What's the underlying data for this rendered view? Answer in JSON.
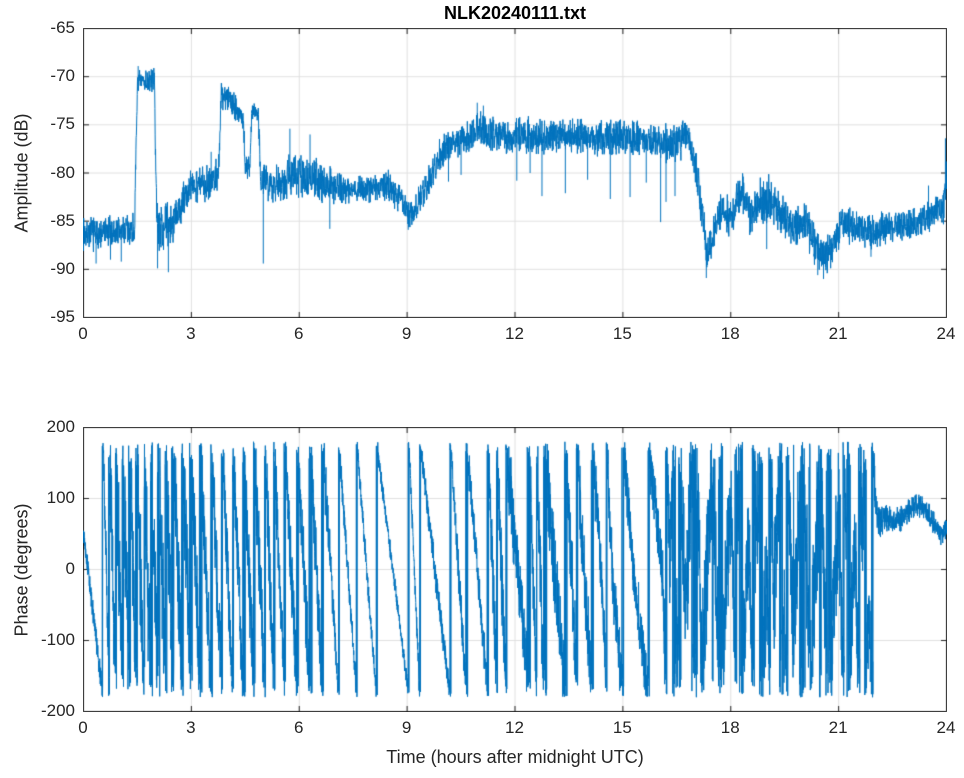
{
  "figure": {
    "title": "NLK20240111.txt",
    "background": "#ffffff"
  },
  "chart_data": [
    {
      "type": "line",
      "title": "NLK20240111.txt",
      "ylabel": "Amplitude (dB)",
      "xlabel": "",
      "xlim": [
        0,
        24
      ],
      "ylim": [
        -95,
        -65
      ],
      "xticks": [
        0,
        3,
        6,
        9,
        12,
        15,
        18,
        21,
        24
      ],
      "yticks": [
        -95,
        -90,
        -85,
        -80,
        -75,
        -70,
        -65
      ],
      "grid": true,
      "legend": "none",
      "line_color": "#0072BD",
      "grid_color": "#e0e0e0",
      "axis_color": "#222222",
      "series": {
        "name": "NLK amplitude",
        "encoding": "anchors are [hour, mean dB, half-spread dB]; spikes are [hour, dB]",
        "envelope": [
          [
            0.0,
            -86.2,
            1.6
          ],
          [
            0.5,
            -86.3,
            1.6
          ],
          [
            1.0,
            -86.0,
            1.7
          ],
          [
            1.42,
            -85.8,
            1.6
          ],
          [
            1.5,
            -70.6,
            1.1
          ],
          [
            1.75,
            -70.4,
            1.2
          ],
          [
            1.97,
            -70.4,
            1.1
          ],
          [
            2.04,
            -85.3,
            2.2
          ],
          [
            2.3,
            -85.6,
            2.3
          ],
          [
            2.6,
            -84.8,
            2.1
          ],
          [
            2.8,
            -82.6,
            1.8
          ],
          [
            3.05,
            -81.2,
            1.6
          ],
          [
            3.35,
            -81.1,
            1.8
          ],
          [
            3.6,
            -80.7,
            1.8
          ],
          [
            3.76,
            -79.8,
            1.5
          ],
          [
            3.83,
            -71.9,
            1.3
          ],
          [
            4.05,
            -72.1,
            1.5
          ],
          [
            4.25,
            -73.2,
            1.5
          ],
          [
            4.44,
            -74.7,
            1.3
          ],
          [
            4.5,
            -79.2,
            1.5
          ],
          [
            4.63,
            -79.6,
            1.5
          ],
          [
            4.68,
            -73.4,
            0.9
          ],
          [
            4.86,
            -73.6,
            0.9
          ],
          [
            4.93,
            -80.6,
            1.6
          ],
          [
            5.2,
            -81.2,
            1.6
          ],
          [
            5.5,
            -80.8,
            2.1
          ],
          [
            5.8,
            -80.2,
            2.2
          ],
          [
            6.1,
            -80.5,
            2.1
          ],
          [
            6.4,
            -80.6,
            2.0
          ],
          [
            6.7,
            -81.0,
            1.8
          ],
          [
            7.0,
            -81.3,
            1.6
          ],
          [
            7.5,
            -81.7,
            1.4
          ],
          [
            8.0,
            -81.6,
            1.4
          ],
          [
            8.5,
            -81.4,
            1.5
          ],
          [
            8.85,
            -82.6,
            1.4
          ],
          [
            9.0,
            -84.4,
            1.2
          ],
          [
            9.2,
            -83.9,
            1.3
          ],
          [
            9.55,
            -81.3,
            1.6
          ],
          [
            9.9,
            -78.2,
            1.6
          ],
          [
            10.3,
            -76.9,
            1.6
          ],
          [
            10.7,
            -76.3,
            1.6
          ],
          [
            11.0,
            -75.4,
            1.6
          ],
          [
            11.35,
            -75.9,
            1.6
          ],
          [
            11.7,
            -76.2,
            1.6
          ],
          [
            12.1,
            -76.0,
            1.7
          ],
          [
            12.5,
            -76.3,
            1.7
          ],
          [
            13.0,
            -76.2,
            1.7
          ],
          [
            13.5,
            -76.0,
            1.6
          ],
          [
            14.0,
            -76.2,
            1.6
          ],
          [
            14.5,
            -76.3,
            1.7
          ],
          [
            15.0,
            -76.2,
            1.7
          ],
          [
            15.5,
            -76.5,
            1.6
          ],
          [
            16.0,
            -76.8,
            1.8
          ],
          [
            16.3,
            -77.1,
            2.0
          ],
          [
            16.6,
            -76.6,
            1.9
          ],
          [
            16.78,
            -75.9,
            1.6
          ],
          [
            16.95,
            -77.8,
            1.6
          ],
          [
            17.15,
            -82.5,
            2.0
          ],
          [
            17.35,
            -88.3,
            1.7
          ],
          [
            17.6,
            -85.2,
            2.0
          ],
          [
            17.82,
            -83.2,
            1.9
          ],
          [
            18.02,
            -85.4,
            1.9
          ],
          [
            18.22,
            -82.0,
            1.9
          ],
          [
            18.4,
            -82.3,
            2.1
          ],
          [
            18.55,
            -84.8,
            2.1
          ],
          [
            18.8,
            -83.2,
            2.3
          ],
          [
            19.05,
            -82.6,
            2.3
          ],
          [
            19.3,
            -83.6,
            2.2
          ],
          [
            19.6,
            -85.4,
            1.9
          ],
          [
            19.85,
            -85.7,
            1.9
          ],
          [
            20.05,
            -84.9,
            1.9
          ],
          [
            20.3,
            -87.2,
            1.9
          ],
          [
            20.55,
            -88.7,
            1.7
          ],
          [
            20.75,
            -88.3,
            1.8
          ],
          [
            20.95,
            -86.6,
            1.8
          ],
          [
            21.15,
            -85.1,
            1.8
          ],
          [
            21.5,
            -85.8,
            1.7
          ],
          [
            21.9,
            -86.0,
            1.8
          ],
          [
            22.3,
            -85.6,
            1.6
          ],
          [
            22.7,
            -85.5,
            1.5
          ],
          [
            23.1,
            -85.2,
            1.5
          ],
          [
            23.45,
            -84.4,
            1.6
          ],
          [
            23.75,
            -84.0,
            1.5
          ],
          [
            23.93,
            -83.6,
            1.5
          ],
          [
            24.0,
            -80.3,
            2.0
          ]
        ],
        "spikes": [
          [
            0.35,
            -89.4
          ],
          [
            0.75,
            -89.0
          ],
          [
            1.05,
            -89.2
          ],
          [
            1.52,
            -68.9
          ],
          [
            2.06,
            -89.9
          ],
          [
            2.36,
            -90.3
          ],
          [
            3.55,
            -77.8
          ],
          [
            3.84,
            -70.7
          ],
          [
            5.0,
            -89.4
          ],
          [
            5.74,
            -75.4
          ],
          [
            6.3,
            -76.0
          ],
          [
            6.85,
            -85.8
          ],
          [
            9.03,
            -85.9
          ],
          [
            10.15,
            -80.9
          ],
          [
            10.5,
            -80.2
          ],
          [
            10.95,
            -72.7
          ],
          [
            11.12,
            -73.0
          ],
          [
            12.05,
            -80.8
          ],
          [
            12.42,
            -80.0
          ],
          [
            12.75,
            -82.4
          ],
          [
            13.4,
            -82.1
          ],
          [
            14.02,
            -80.7
          ],
          [
            14.65,
            -82.7
          ],
          [
            15.2,
            -82.5
          ],
          [
            15.65,
            -81.0
          ],
          [
            16.05,
            -85.1
          ],
          [
            16.2,
            -83.0
          ],
          [
            16.45,
            -82.4
          ],
          [
            17.32,
            -90.9
          ],
          [
            19.0,
            -87.9
          ],
          [
            20.42,
            -90.6
          ],
          [
            20.58,
            -91.0
          ],
          [
            21.9,
            -88.7
          ],
          [
            23.5,
            -81.3
          ],
          [
            23.97,
            -76.4
          ]
        ]
      }
    },
    {
      "type": "line",
      "title": "",
      "ylabel": "Phase (degrees)",
      "xlabel": "Time (hours after midnight UTC)",
      "xlim": [
        0,
        24
      ],
      "ylim": [
        -200,
        200
      ],
      "xticks": [
        0,
        3,
        6,
        9,
        12,
        15,
        18,
        21,
        24
      ],
      "yticks": [
        -200,
        -100,
        0,
        100,
        200
      ],
      "grid": true,
      "legend": "none",
      "line_color": "#0072BD",
      "grid_color": "#e0e0e0",
      "axis_color": "#222222",
      "series": {
        "name": "NLK phase",
        "wrap_range": [
          -180,
          180
        ],
        "encoding": "anchors are [hour, unwrapped phase deg, half-spread deg]; plotted phase wraps to [-180,180]",
        "anchors": [
          [
            0.0,
            55,
            12
          ],
          [
            0.55,
            -185,
            15
          ],
          [
            0.72,
            -540,
            70
          ],
          [
            0.9,
            -900,
            85
          ],
          [
            1.1,
            -1280,
            85
          ],
          [
            1.3,
            -1660,
            85
          ],
          [
            1.5,
            -2020,
            85
          ],
          [
            1.7,
            -2380,
            85
          ],
          [
            1.9,
            -2740,
            85
          ],
          [
            2.1,
            -3100,
            80
          ],
          [
            2.3,
            -3440,
            80
          ],
          [
            2.5,
            -3780,
            75
          ],
          [
            2.75,
            -4140,
            70
          ],
          [
            3.0,
            -4500,
            65
          ],
          [
            3.25,
            -4860,
            60
          ],
          [
            3.55,
            -5220,
            55
          ],
          [
            3.85,
            -5580,
            50
          ],
          [
            4.15,
            -5940,
            50
          ],
          [
            4.45,
            -6300,
            50
          ],
          [
            4.75,
            -6660,
            55
          ],
          [
            5.05,
            -7020,
            55
          ],
          [
            5.3,
            -7380,
            50
          ],
          [
            5.6,
            -7740,
            45
          ],
          [
            5.95,
            -8100,
            55
          ],
          [
            6.3,
            -8460,
            55
          ],
          [
            6.65,
            -8820,
            40
          ],
          [
            7.1,
            -9180,
            20
          ],
          [
            7.6,
            -9540,
            15
          ],
          [
            8.15,
            -9900,
            12
          ],
          [
            9.05,
            -10260,
            10
          ],
          [
            9.35,
            -10620,
            18
          ],
          [
            10.2,
            -10980,
            20
          ],
          [
            10.65,
            -11340,
            25
          ],
          [
            11.25,
            -11700,
            30
          ],
          [
            11.5,
            -12060,
            55
          ],
          [
            11.75,
            -12420,
            55
          ],
          [
            12.4,
            -12780,
            45
          ],
          [
            12.6,
            -13140,
            60
          ],
          [
            12.8,
            -13500,
            60
          ],
          [
            13.4,
            -13860,
            45
          ],
          [
            13.65,
            -14130,
            55
          ],
          [
            13.9,
            -14400,
            55
          ],
          [
            14.4,
            -14760,
            40
          ],
          [
            14.7,
            -15120,
            40
          ],
          [
            15.3,
            -15480,
            35
          ],
          [
            16.1,
            -15840,
            40
          ],
          [
            16.3,
            -16180,
            70
          ],
          [
            16.5,
            -15920,
            70
          ],
          [
            16.75,
            -16260,
            80
          ],
          [
            17.0,
            -15960,
            80
          ],
          [
            17.2,
            -16340,
            85
          ],
          [
            17.5,
            -16040,
            85
          ],
          [
            17.7,
            -16400,
            85
          ],
          [
            18.0,
            -16100,
            85
          ],
          [
            18.2,
            -16480,
            85
          ],
          [
            18.5,
            -16160,
            85
          ],
          [
            18.7,
            -16540,
            85
          ],
          [
            19.0,
            -16220,
            85
          ],
          [
            19.2,
            -16600,
            85
          ],
          [
            19.5,
            -16280,
            85
          ],
          [
            19.75,
            -16660,
            85
          ],
          [
            20.0,
            -16340,
            85
          ],
          [
            20.2,
            -16720,
            85
          ],
          [
            20.5,
            -16400,
            85
          ],
          [
            20.7,
            -16780,
            85
          ],
          [
            21.0,
            -16460,
            85
          ],
          [
            21.2,
            -16840,
            85
          ],
          [
            21.45,
            -16520,
            80
          ],
          [
            21.65,
            -16880,
            80
          ],
          [
            21.85,
            -16620,
            60
          ],
          [
            22.05,
            -16850,
            25
          ],
          [
            22.3,
            -16848,
            17
          ],
          [
            22.6,
            -16852,
            16
          ],
          [
            22.9,
            -16842,
            16
          ],
          [
            23.15,
            -16828,
            15
          ],
          [
            23.4,
            -16835,
            15
          ],
          [
            23.7,
            -16860,
            14
          ],
          [
            23.85,
            -16872,
            13
          ],
          [
            24.0,
            -16862,
            13
          ]
        ]
      }
    }
  ]
}
